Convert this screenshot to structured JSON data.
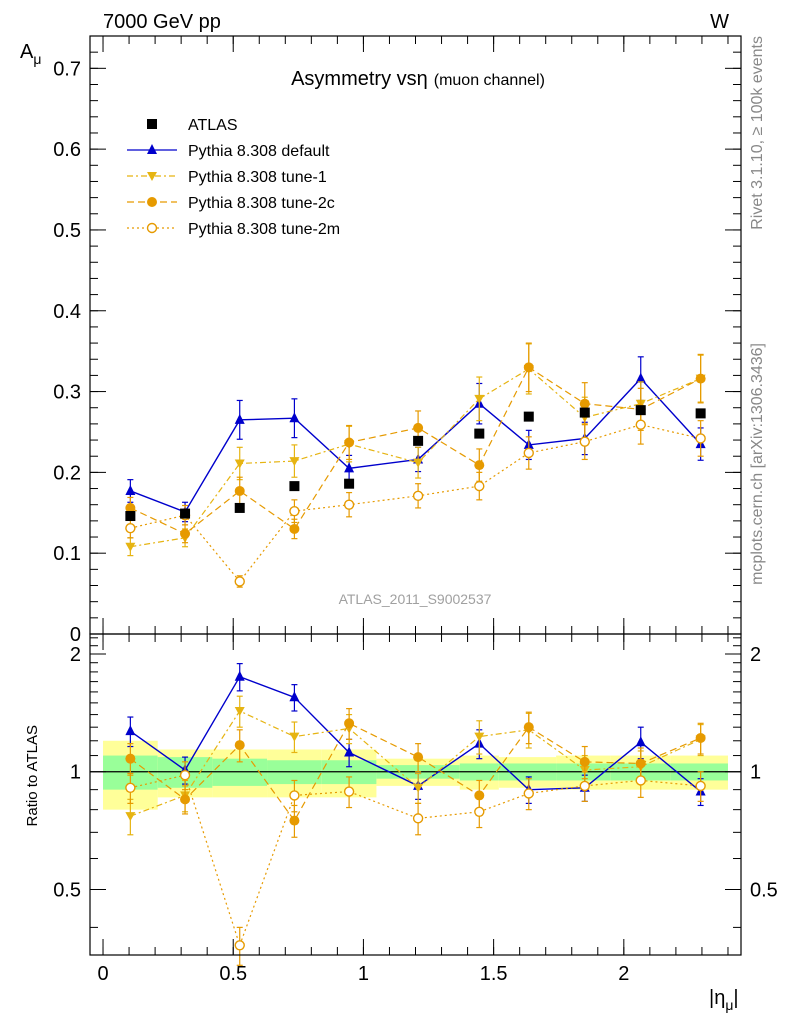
{
  "header": {
    "left": "7000 GeV pp",
    "right": "W",
    "side_top": "Rivet 3.1.10, ≥ 100k events",
    "side_bottom": "mcplots.cern.ch [arXiv:1306.3436]",
    "watermark": "ATLAS_2011_S9002537"
  },
  "chart_data": {
    "type": "line",
    "title": "Asymmetry vsη",
    "subtitle": "(muon channel)",
    "ylabel_main": "A",
    "ylabel_main_sub": "μ",
    "ylabel_ratio": "Ratio to ATLAS",
    "xlabel": "|η",
    "xlabel_sub": "μ",
    "xlabel_end": "|",
    "xlim": [
      -0.05,
      2.45
    ],
    "ylim_main": [
      0,
      0.74
    ],
    "ylim_ratio": [
      0.34,
      2.25
    ],
    "x_ticks": [
      "0",
      "0.5",
      "1",
      "1.5",
      "2"
    ],
    "y_ticks_main": [
      "0",
      "0.1",
      "0.2",
      "0.3",
      "0.4",
      "0.5",
      "0.6",
      "0.7"
    ],
    "y_ticks_ratio": [
      "0.5",
      "1",
      "2"
    ],
    "x": [
      0.105,
      0.315,
      0.525,
      0.735,
      0.945,
      1.21,
      1.445,
      1.635,
      1.85,
      2.065,
      2.295
    ],
    "bin_edges": [
      0,
      0.21,
      0.42,
      0.63,
      0.84,
      1.05,
      1.37,
      1.52,
      1.74,
      1.95,
      2.18,
      2.4
    ],
    "ratio_band_inner": [
      0.1,
      0.09,
      0.08,
      0.07,
      0.07,
      0.04,
      0.05,
      0.05,
      0.05,
      0.05,
      0.05
    ],
    "ratio_band_outer": [
      0.2,
      0.14,
      0.14,
      0.14,
      0.14,
      0.08,
      0.1,
      0.09,
      0.1,
      0.1,
      0.1
    ],
    "legend_position": "top-left",
    "series": [
      {
        "name": "ATLAS",
        "color": "#000000",
        "marker": "square",
        "dash": "none",
        "values": [
          0.146,
          0.149,
          0.156,
          0.183,
          0.186,
          0.239,
          0.248,
          0.269,
          0.274,
          0.277,
          0.273
        ],
        "errors": [
          0,
          0,
          0,
          0,
          0,
          0,
          0,
          0,
          0,
          0,
          0
        ],
        "ratio": [
          1,
          1,
          1,
          1,
          1,
          1,
          1,
          1,
          1,
          1,
          1
        ],
        "ratio_errors": [
          0,
          0,
          0,
          0,
          0,
          0,
          0,
          0,
          0,
          0,
          0
        ]
      },
      {
        "name": "Pythia 8.308 default",
        "color": "#0000cc",
        "marker": "triangle-up",
        "dash": "none",
        "values": [
          0.177,
          0.151,
          0.265,
          0.267,
          0.205,
          0.216,
          0.285,
          0.234,
          0.242,
          0.316,
          0.235
        ],
        "errors": [
          0.014,
          0.012,
          0.024,
          0.024,
          0.016,
          0.015,
          0.025,
          0.018,
          0.02,
          0.027,
          0.02
        ],
        "ratio": [
          1.27,
          1.01,
          1.75,
          1.55,
          1.12,
          0.92,
          1.18,
          0.9,
          0.91,
          1.19,
          0.89
        ],
        "ratio_errors": [
          0.11,
          0.08,
          0.14,
          0.12,
          0.09,
          0.07,
          0.1,
          0.07,
          0.07,
          0.11,
          0.07
        ]
      },
      {
        "name": "Pythia 8.308 tune-1",
        "color": "#e6b412",
        "marker": "triangle-down",
        "dash": "6,3,2,3",
        "values": [
          0.108,
          0.119,
          0.211,
          0.214,
          0.235,
          0.212,
          0.291,
          0.328,
          0.268,
          0.285,
          0.316
        ],
        "errors": [
          0.011,
          0.011,
          0.02,
          0.02,
          0.022,
          0.019,
          0.027,
          0.031,
          0.025,
          0.027,
          0.029
        ],
        "ratio": [
          0.77,
          0.87,
          1.43,
          1.23,
          1.29,
          0.91,
          1.23,
          1.28,
          1.01,
          1.03,
          1.21
        ],
        "ratio_errors": [
          0.08,
          0.08,
          0.13,
          0.11,
          0.11,
          0.08,
          0.12,
          0.13,
          0.09,
          0.1,
          0.11
        ]
      },
      {
        "name": "Pythia 8.308 tune-2c",
        "color": "#e69a00",
        "marker": "circle",
        "dash": "7,4",
        "values": [
          0.156,
          0.124,
          0.177,
          0.13,
          0.237,
          0.255,
          0.209,
          0.33,
          0.285,
          0.278,
          0.316
        ],
        "errors": [
          0.013,
          0.011,
          0.017,
          0.012,
          0.021,
          0.021,
          0.02,
          0.03,
          0.026,
          0.026,
          0.03
        ],
        "ratio": [
          1.08,
          0.85,
          1.17,
          0.75,
          1.33,
          1.09,
          0.87,
          1.3,
          1.06,
          1.05,
          1.22
        ],
        "ratio_errors": [
          0.1,
          0.07,
          0.11,
          0.07,
          0.12,
          0.09,
          0.08,
          0.12,
          0.1,
          0.1,
          0.11
        ]
      },
      {
        "name": "Pythia 8.308 tune-2m",
        "color": "#e69a00",
        "marker": "circle-open",
        "dash": "2,3",
        "values": [
          0.131,
          0.147,
          0.065,
          0.152,
          0.16,
          0.171,
          0.183,
          0.224,
          0.238,
          0.259,
          0.242
        ],
        "errors": [
          0.012,
          0.012,
          0.007,
          0.014,
          0.015,
          0.015,
          0.017,
          0.02,
          0.022,
          0.024,
          0.022
        ],
        "ratio": [
          0.91,
          0.98,
          0.36,
          0.87,
          0.89,
          0.76,
          0.79,
          0.88,
          0.92,
          0.95,
          0.92
        ],
        "ratio_errors": [
          0.08,
          0.08,
          0.04,
          0.08,
          0.08,
          0.07,
          0.07,
          0.08,
          0.08,
          0.09,
          0.08
        ]
      }
    ]
  }
}
